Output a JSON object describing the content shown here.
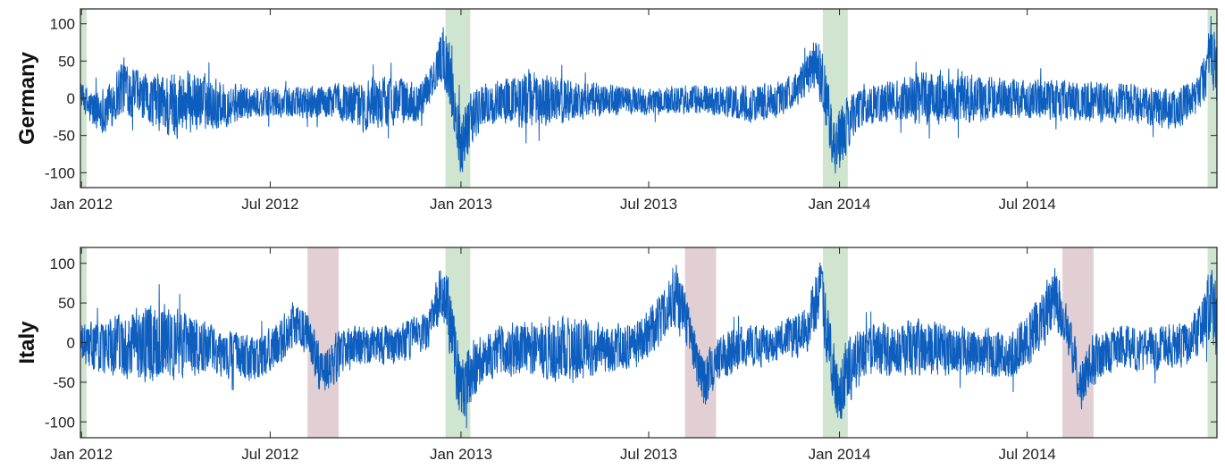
{
  "chart_data": [
    {
      "type": "line",
      "ylabel": "Germany",
      "xlim": [
        "2011-12-31",
        "2014-12-31"
      ],
      "ylim": [
        -120,
        120
      ],
      "yticks": [
        100,
        50,
        0,
        -50,
        -100
      ],
      "ytick_labels": [
        "100",
        "50",
        "0",
        "-50",
        "-100"
      ],
      "xticks": [
        "2012-01-01",
        "2012-07-01",
        "2013-01-01",
        "2013-07-01",
        "2014-01-01",
        "2014-07-01"
      ],
      "xtick_labels": [
        "Jan 2012",
        "Jul 2012",
        "Jan 2013",
        "Jul 2013",
        "Jan 2014",
        "Jul 2014"
      ],
      "grid": false,
      "line_color": "#0055bb",
      "highlights": [
        {
          "start": "2011-12-31",
          "end": "2012-01-06",
          "color": "#a8d0a8"
        },
        {
          "start": "2012-12-17",
          "end": "2013-01-10",
          "color": "#a8d0a8"
        },
        {
          "start": "2013-12-16",
          "end": "2014-01-09",
          "color": "#a8d0a8"
        },
        {
          "start": "2014-12-22",
          "end": "2014-12-31",
          "color": "#a8d0a8"
        }
      ],
      "envelope": [
        {
          "x": "2011-12-31",
          "low": -10,
          "high": 25
        },
        {
          "x": "2012-01-10",
          "low": -45,
          "high": 15
        },
        {
          "x": "2012-01-25",
          "low": -50,
          "high": 20
        },
        {
          "x": "2012-02-10",
          "low": -25,
          "high": 60
        },
        {
          "x": "2012-03-01",
          "low": -35,
          "high": 35
        },
        {
          "x": "2012-03-25",
          "low": -60,
          "high": 40
        },
        {
          "x": "2012-04-15",
          "low": -50,
          "high": 45
        },
        {
          "x": "2012-05-10",
          "low": -45,
          "high": 30
        },
        {
          "x": "2012-06-10",
          "low": -30,
          "high": 20
        },
        {
          "x": "2012-07-15",
          "low": -30,
          "high": 15
        },
        {
          "x": "2012-08-15",
          "low": -30,
          "high": 20
        },
        {
          "x": "2012-09-10",
          "low": -35,
          "high": 25
        },
        {
          "x": "2012-10-01",
          "low": -50,
          "high": 30
        },
        {
          "x": "2012-10-25",
          "low": -40,
          "high": 35
        },
        {
          "x": "2012-11-20",
          "low": -35,
          "high": 25
        },
        {
          "x": "2012-12-05",
          "low": -5,
          "high": 50
        },
        {
          "x": "2012-12-14",
          "low": 20,
          "high": 110
        },
        {
          "x": "2012-12-20",
          "low": -10,
          "high": 85
        },
        {
          "x": "2012-12-26",
          "low": -60,
          "high": 30
        },
        {
          "x": "2013-01-01",
          "low": -110,
          "high": -10
        },
        {
          "x": "2013-01-08",
          "low": -80,
          "high": 10
        },
        {
          "x": "2013-01-20",
          "low": -45,
          "high": 25
        },
        {
          "x": "2013-02-10",
          "low": -35,
          "high": 30
        },
        {
          "x": "2013-03-05",
          "low": -45,
          "high": 45
        },
        {
          "x": "2013-04-01",
          "low": -40,
          "high": 35
        },
        {
          "x": "2013-05-01",
          "low": -30,
          "high": 25
        },
        {
          "x": "2013-06-01",
          "low": -25,
          "high": 20
        },
        {
          "x": "2013-07-01",
          "low": -25,
          "high": 15
        },
        {
          "x": "2013-08-01",
          "low": -25,
          "high": 20
        },
        {
          "x": "2013-09-01",
          "low": -25,
          "high": 20
        },
        {
          "x": "2013-10-01",
          "low": -35,
          "high": 20
        },
        {
          "x": "2013-11-01",
          "low": -30,
          "high": 25
        },
        {
          "x": "2013-11-25",
          "low": -10,
          "high": 45
        },
        {
          "x": "2013-12-10",
          "low": 10,
          "high": 95
        },
        {
          "x": "2013-12-18",
          "low": -40,
          "high": 60
        },
        {
          "x": "2013-12-27",
          "low": -110,
          "high": -20
        },
        {
          "x": "2014-01-05",
          "low": -90,
          "high": 0
        },
        {
          "x": "2014-01-15",
          "low": -50,
          "high": 20
        },
        {
          "x": "2014-02-05",
          "low": -35,
          "high": 25
        },
        {
          "x": "2014-03-01",
          "low": -35,
          "high": 30
        },
        {
          "x": "2014-03-25",
          "low": -40,
          "high": 40
        },
        {
          "x": "2014-04-20",
          "low": -40,
          "high": 45
        },
        {
          "x": "2014-05-20",
          "low": -35,
          "high": 35
        },
        {
          "x": "2014-06-20",
          "low": -30,
          "high": 30
        },
        {
          "x": "2014-07-20",
          "low": -30,
          "high": 30
        },
        {
          "x": "2014-08-20",
          "low": -35,
          "high": 25
        },
        {
          "x": "2014-09-20",
          "low": -35,
          "high": 25
        },
        {
          "x": "2014-10-20",
          "low": -40,
          "high": 20
        },
        {
          "x": "2014-11-20",
          "low": -45,
          "high": 15
        },
        {
          "x": "2014-12-10",
          "low": -30,
          "high": 25
        },
        {
          "x": "2014-12-20",
          "low": -10,
          "high": 70
        },
        {
          "x": "2014-12-25",
          "low": 10,
          "high": 120
        },
        {
          "x": "2014-12-31",
          "low": -20,
          "high": 90
        }
      ]
    },
    {
      "type": "line",
      "ylabel": "Italy",
      "xlim": [
        "2011-12-31",
        "2014-12-31"
      ],
      "ylim": [
        -120,
        120
      ],
      "yticks": [
        100,
        50,
        0,
        -50,
        -100
      ],
      "ytick_labels": [
        "100",
        "50",
        "0",
        "-50",
        "-100"
      ],
      "xticks": [
        "2012-01-01",
        "2012-07-01",
        "2013-01-01",
        "2013-07-01",
        "2014-01-01",
        "2014-07-01"
      ],
      "xtick_labels": [
        "Jan 2012",
        "Jul 2012",
        "Jan 2013",
        "Jul 2013",
        "Jan 2014",
        "Jul 2014"
      ],
      "grid": false,
      "line_color": "#0055bb",
      "highlights": [
        {
          "start": "2011-12-31",
          "end": "2012-01-06",
          "color": "#a8d0a8"
        },
        {
          "start": "2012-08-06",
          "end": "2012-09-05",
          "color": "#c8a8ae"
        },
        {
          "start": "2012-12-17",
          "end": "2013-01-10",
          "color": "#a8d0a8"
        },
        {
          "start": "2013-08-05",
          "end": "2013-09-04",
          "color": "#c8a8ae"
        },
        {
          "start": "2013-12-16",
          "end": "2014-01-09",
          "color": "#a8d0a8"
        },
        {
          "start": "2014-08-04",
          "end": "2014-09-03",
          "color": "#c8a8ae"
        },
        {
          "start": "2014-12-22",
          "end": "2014-12-31",
          "color": "#a8d0a8"
        }
      ],
      "envelope": [
        {
          "x": "2011-12-31",
          "low": -30,
          "high": 25
        },
        {
          "x": "2012-01-15",
          "low": -45,
          "high": 30
        },
        {
          "x": "2012-02-15",
          "low": -50,
          "high": 45
        },
        {
          "x": "2012-03-15",
          "low": -55,
          "high": 55
        },
        {
          "x": "2012-04-15",
          "low": -45,
          "high": 40
        },
        {
          "x": "2012-05-15",
          "low": -45,
          "high": 20
        },
        {
          "x": "2012-06-15",
          "low": -55,
          "high": 10
        },
        {
          "x": "2012-07-05",
          "low": -40,
          "high": 25
        },
        {
          "x": "2012-07-25",
          "low": -10,
          "high": 60
        },
        {
          "x": "2012-08-08",
          "low": -20,
          "high": 40
        },
        {
          "x": "2012-08-20",
          "low": -80,
          "high": -10
        },
        {
          "x": "2012-09-05",
          "low": -50,
          "high": 20
        },
        {
          "x": "2012-10-01",
          "low": -30,
          "high": 25
        },
        {
          "x": "2012-11-01",
          "low": -30,
          "high": 25
        },
        {
          "x": "2012-12-01",
          "low": -15,
          "high": 45
        },
        {
          "x": "2012-12-15",
          "low": 20,
          "high": 115
        },
        {
          "x": "2012-12-22",
          "low": -30,
          "high": 70
        },
        {
          "x": "2013-01-01",
          "low": -110,
          "high": -20
        },
        {
          "x": "2013-01-10",
          "low": -80,
          "high": 10
        },
        {
          "x": "2013-01-25",
          "low": -50,
          "high": 20
        },
        {
          "x": "2013-02-20",
          "low": -45,
          "high": 30
        },
        {
          "x": "2013-03-20",
          "low": -50,
          "high": 35
        },
        {
          "x": "2013-04-20",
          "low": -55,
          "high": 40
        },
        {
          "x": "2013-05-20",
          "low": -40,
          "high": 25
        },
        {
          "x": "2013-06-20",
          "low": -40,
          "high": 30
        },
        {
          "x": "2013-07-10",
          "low": -10,
          "high": 60
        },
        {
          "x": "2013-07-28",
          "low": 10,
          "high": 110
        },
        {
          "x": "2013-08-10",
          "low": -20,
          "high": 40
        },
        {
          "x": "2013-08-22",
          "low": -90,
          "high": -15
        },
        {
          "x": "2013-09-05",
          "low": -55,
          "high": 15
        },
        {
          "x": "2013-10-01",
          "low": -35,
          "high": 25
        },
        {
          "x": "2013-11-01",
          "low": -30,
          "high": 25
        },
        {
          "x": "2013-12-01",
          "low": -15,
          "high": 50
        },
        {
          "x": "2013-12-14",
          "low": 20,
          "high": 120
        },
        {
          "x": "2013-12-20",
          "low": -30,
          "high": 60
        },
        {
          "x": "2013-12-30",
          "low": -115,
          "high": -20
        },
        {
          "x": "2014-01-08",
          "low": -85,
          "high": 10
        },
        {
          "x": "2014-01-25",
          "low": -50,
          "high": 25
        },
        {
          "x": "2014-02-20",
          "low": -45,
          "high": 30
        },
        {
          "x": "2014-03-20",
          "low": -45,
          "high": 35
        },
        {
          "x": "2014-04-20",
          "low": -45,
          "high": 25
        },
        {
          "x": "2014-05-20",
          "low": -45,
          "high": 20
        },
        {
          "x": "2014-06-20",
          "low": -50,
          "high": 25
        },
        {
          "x": "2014-07-10",
          "low": -20,
          "high": 60
        },
        {
          "x": "2014-07-28",
          "low": 10,
          "high": 100
        },
        {
          "x": "2014-08-10",
          "low": -20,
          "high": 40
        },
        {
          "x": "2014-08-22",
          "low": -90,
          "high": -15
        },
        {
          "x": "2014-09-05",
          "low": -55,
          "high": 20
        },
        {
          "x": "2014-10-01",
          "low": -35,
          "high": 25
        },
        {
          "x": "2014-11-01",
          "low": -40,
          "high": 25
        },
        {
          "x": "2014-12-01",
          "low": -35,
          "high": 30
        },
        {
          "x": "2014-12-15",
          "low": -20,
          "high": 50
        },
        {
          "x": "2014-12-25",
          "low": 0,
          "high": 110
        },
        {
          "x": "2014-12-31",
          "low": -30,
          "high": 80
        }
      ]
    }
  ]
}
